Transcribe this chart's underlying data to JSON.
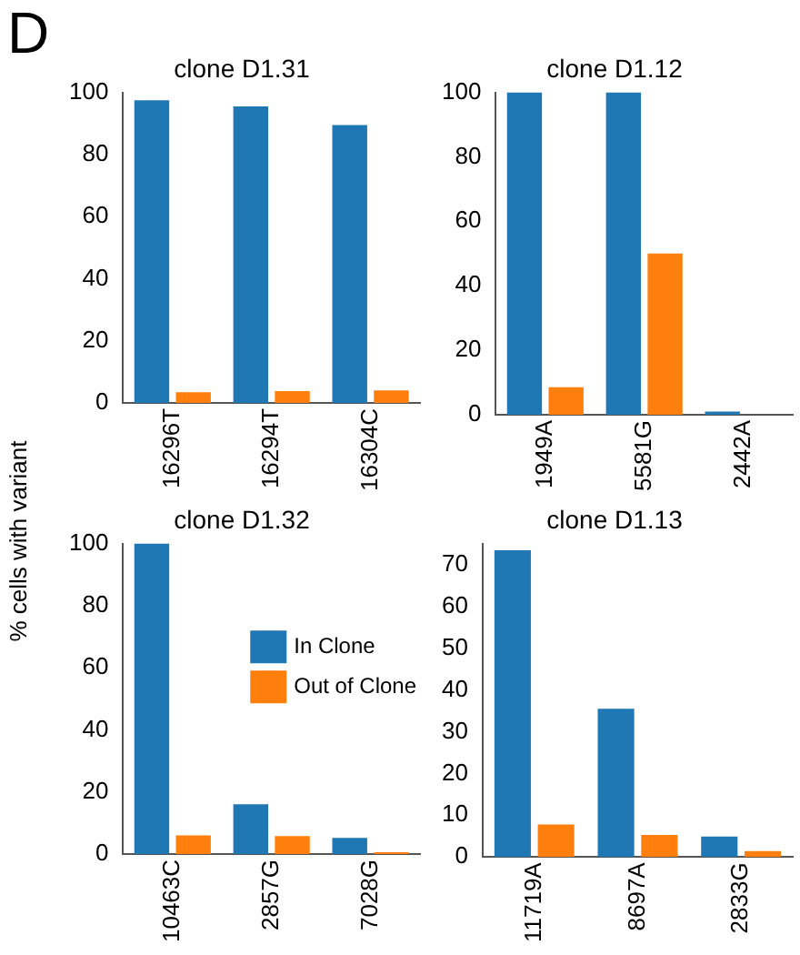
{
  "chart_data": [
    {
      "type": "bar",
      "title": "clone D1.31",
      "ylabel": "% cells with variant",
      "annotations": [
        "D"
      ],
      "categories": [
        "16296T",
        "16294T",
        "16304C"
      ],
      "ylim": [
        0,
        100
      ],
      "yticks": [
        0,
        20,
        40,
        60,
        80,
        100
      ],
      "grid": false,
      "legend": false,
      "series": [
        {
          "color": "#1f77b4",
          "values": [
            97.5,
            95.5,
            89.5
          ]
        },
        {
          "color": "#ff7f0e",
          "values": [
            3.4,
            3.8,
            4
          ]
        }
      ]
    },
    {
      "type": "bar",
      "title": "clone D1.12",
      "categories": [
        "1949A",
        "5581G",
        "2442A"
      ],
      "ylim": [
        0,
        100
      ],
      "yticks": [
        0,
        20,
        40,
        60,
        80,
        100
      ],
      "grid": false,
      "legend": false,
      "series": [
        {
          "color": "#1f77b4",
          "values": [
            100,
            100,
            1
          ]
        },
        {
          "color": "#ff7f0e",
          "values": [
            8.5,
            50,
            0
          ]
        }
      ]
    },
    {
      "type": "bar",
      "title": "clone D1.32",
      "categories": [
        "10463C",
        "2857G",
        "7028G"
      ],
      "ylim": [
        0,
        100
      ],
      "yticks": [
        0,
        20,
        40,
        60,
        80,
        100
      ],
      "grid": false,
      "legend": "top right",
      "series": [
        {
          "name": "In Clone",
          "color": "#1f77b4",
          "values": [
            100,
            16,
            5.2
          ]
        },
        {
          "name": "Out of Clone",
          "color": "#ff7f0e",
          "values": [
            6,
            5.8,
            0.6
          ]
        }
      ]
    },
    {
      "type": "bar",
      "title": "clone D1.13",
      "categories": [
        "11719A",
        "8697A",
        "2833G"
      ],
      "ylim": [
        0,
        75
      ],
      "yticks": [
        0,
        10,
        20,
        30,
        40,
        50,
        60,
        70
      ],
      "grid": false,
      "legend": false,
      "series": [
        {
          "color": "#1f77b4",
          "values": [
            73.4,
            35.5,
            4.9
          ]
        },
        {
          "color": "#ff7f0e",
          "values": [
            7.8,
            5.3,
            1.4
          ]
        }
      ]
    }
  ]
}
